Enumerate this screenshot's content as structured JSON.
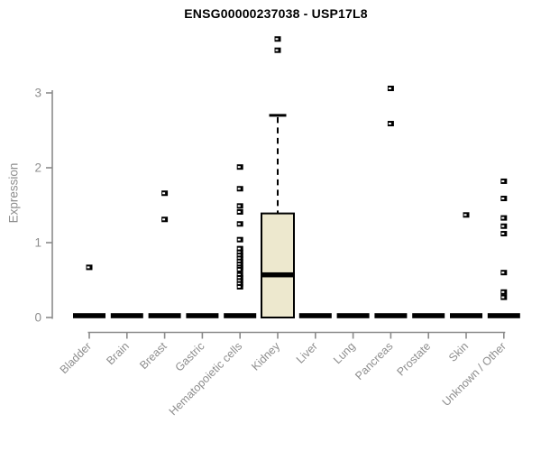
{
  "chart_data": {
    "type": "boxplot",
    "title": "ENSG00000237038 - USP17L8",
    "ylabel": "Expression",
    "xlabel": "",
    "ylim": [
      0,
      3
    ],
    "yticks": [
      0,
      1,
      2,
      3
    ],
    "grid": false,
    "legend": null,
    "categories": [
      "Bladder",
      "Brain",
      "Breast",
      "Gastric",
      "Hematopoietic cells",
      "Kidney",
      "Liver",
      "Lung",
      "Pancreas",
      "Prostate",
      "Skin",
      "Unknown / Other"
    ],
    "groups": [
      {
        "category": "Bladder",
        "q1": 0,
        "median": 0,
        "q3": 0,
        "whisker_low": 0,
        "whisker_high": 0,
        "outliers": [
          0.67
        ]
      },
      {
        "category": "Brain",
        "q1": 0,
        "median": 0,
        "q3": 0,
        "whisker_low": 0,
        "whisker_high": 0,
        "outliers": []
      },
      {
        "category": "Breast",
        "q1": 0,
        "median": 0,
        "q3": 0,
        "whisker_low": 0,
        "whisker_high": 0,
        "outliers": [
          1.66,
          1.31
        ]
      },
      {
        "category": "Gastric",
        "q1": 0,
        "median": 0,
        "q3": 0,
        "whisker_low": 0,
        "whisker_high": 0,
        "outliers": []
      },
      {
        "category": "Hematopoietic cells",
        "q1": 0,
        "median": 0,
        "q3": 0,
        "whisker_low": 0,
        "whisker_high": 0,
        "outliers": [
          2.01,
          1.72,
          1.49,
          1.41,
          1.25,
          1.04,
          0.92,
          0.87,
          0.83,
          0.79,
          0.75,
          0.71,
          0.67,
          0.64,
          0.57,
          0.53,
          0.49,
          0.45,
          0.41
        ]
      },
      {
        "category": "Kidney",
        "q1": 0,
        "median": 0.57,
        "q3": 1.39,
        "whisker_low": 0,
        "whisker_high": 2.7,
        "outliers": [
          3.72,
          3.57
        ]
      },
      {
        "category": "Liver",
        "q1": 0,
        "median": 0,
        "q3": 0,
        "whisker_low": 0,
        "whisker_high": 0,
        "outliers": []
      },
      {
        "category": "Lung",
        "q1": 0,
        "median": 0,
        "q3": 0,
        "whisker_low": 0,
        "whisker_high": 0,
        "outliers": []
      },
      {
        "category": "Pancreas",
        "q1": 0,
        "median": 0,
        "q3": 0,
        "whisker_low": 0,
        "whisker_high": 0,
        "outliers": [
          3.06,
          2.59
        ]
      },
      {
        "category": "Prostate",
        "q1": 0,
        "median": 0,
        "q3": 0,
        "whisker_low": 0,
        "whisker_high": 0,
        "outliers": []
      },
      {
        "category": "Skin",
        "q1": 0,
        "median": 0,
        "q3": 0,
        "whisker_low": 0,
        "whisker_high": 0,
        "outliers": [
          1.37
        ]
      },
      {
        "category": "Unknown / Other",
        "q1": 0,
        "median": 0,
        "q3": 0,
        "whisker_low": 0,
        "whisker_high": 0,
        "outliers": [
          1.82,
          1.59,
          1.33,
          1.22,
          1.12,
          0.6,
          0.34,
          0.27
        ]
      }
    ],
    "colors": {
      "box_fill": "#EDE8CE",
      "box_border": "#000000",
      "median": "#000000",
      "whisker": "#000000",
      "outlier": "#000000",
      "axis": "#8A8A8A",
      "tick_text": "#8E8E8E",
      "title": "#000000",
      "background": "#FFFFFF"
    }
  }
}
